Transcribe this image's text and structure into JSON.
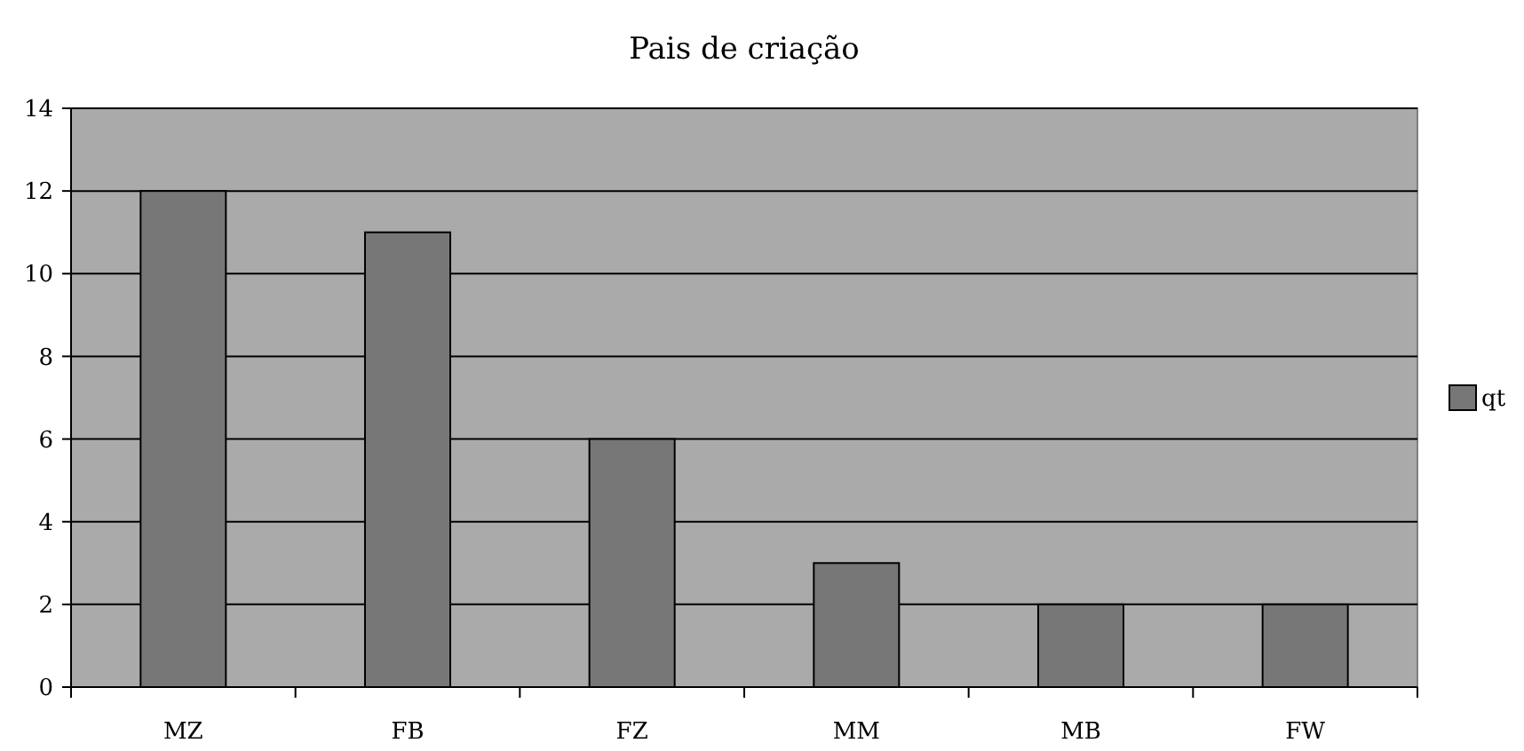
{
  "chart_data": {
    "type": "bar",
    "title": "Pais de criação",
    "categories": [
      "MZ",
      "FB",
      "FZ",
      "MM",
      "MB",
      "FW"
    ],
    "series": [
      {
        "name": "qt",
        "color": "#777777",
        "values": [
          12,
          11,
          6,
          3,
          2,
          2
        ]
      }
    ],
    "ylim": [
      0,
      14
    ],
    "yticks": [
      0,
      2,
      4,
      6,
      8,
      10,
      12,
      14
    ],
    "grid": "y",
    "legend": "right"
  }
}
